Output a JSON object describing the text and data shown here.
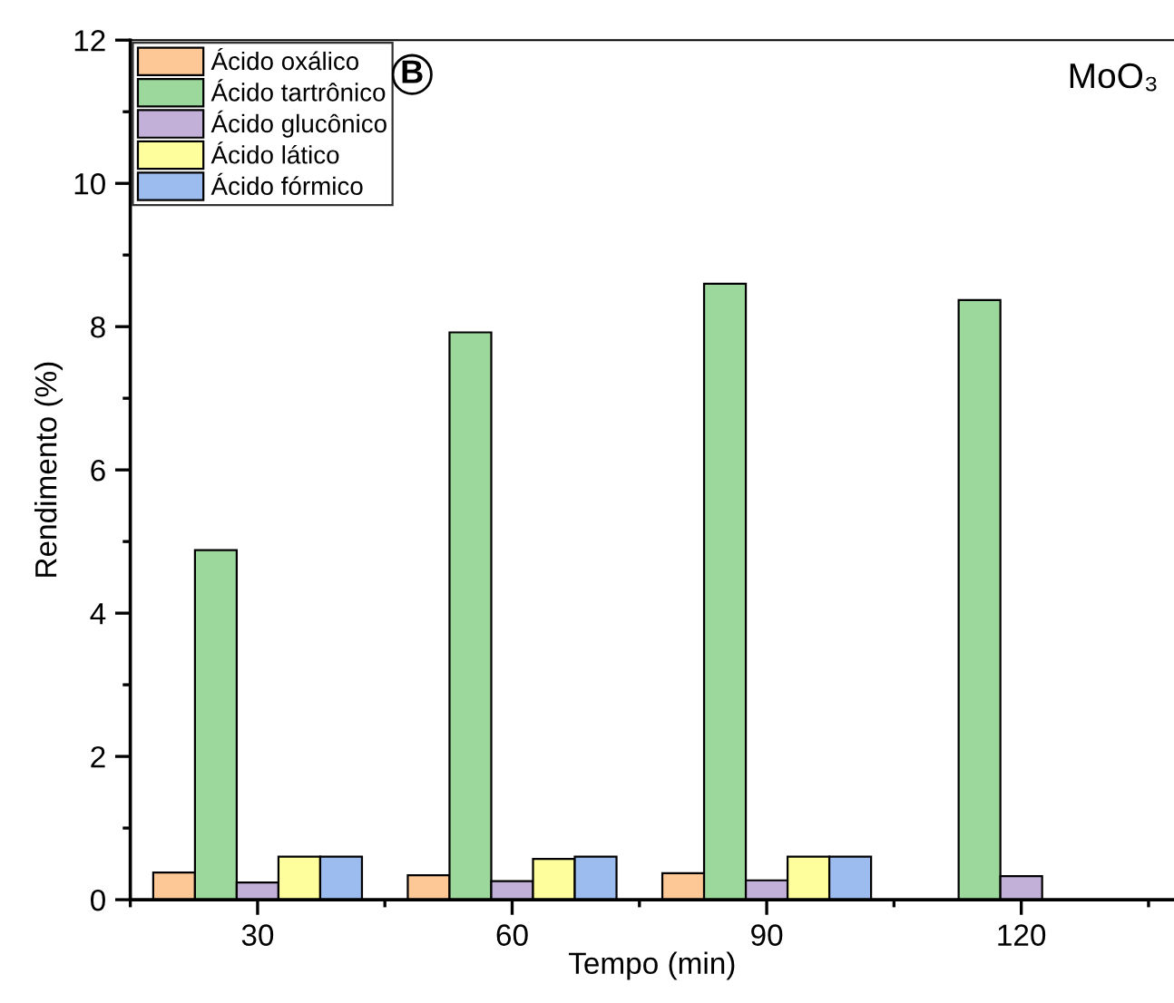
{
  "chart_data": {
    "type": "bar",
    "xlabel": "Tempo (min)",
    "ylabel": "Rendimento (%)",
    "categories": [
      "30",
      "60",
      "90",
      "120"
    ],
    "series": [
      {
        "name": "Ácido oxálico",
        "color": "#fdc896",
        "values": [
          0.38,
          0.34,
          0.37,
          null
        ]
      },
      {
        "name": "Ácido tartrônico",
        "color": "#9cd89c",
        "values": [
          4.88,
          7.92,
          8.6,
          8.37
        ]
      },
      {
        "name": "Ácido glucônico",
        "color": "#c2b0d8",
        "values": [
          0.24,
          0.26,
          0.27,
          0.33
        ]
      },
      {
        "name": "Ácido lático",
        "color": "#fefe9c",
        "values": [
          0.6,
          0.57,
          0.6,
          null
        ]
      },
      {
        "name": "Ácido fórmico",
        "color": "#9cbcf0",
        "values": [
          0.6,
          0.6,
          0.6,
          null
        ]
      }
    ],
    "ylim": [
      0,
      12
    ],
    "yticks": [
      0,
      2,
      4,
      6,
      8,
      10,
      12
    ],
    "grid": false,
    "legend": "top left",
    "annotations": [
      "B",
      "MoO₃"
    ]
  }
}
